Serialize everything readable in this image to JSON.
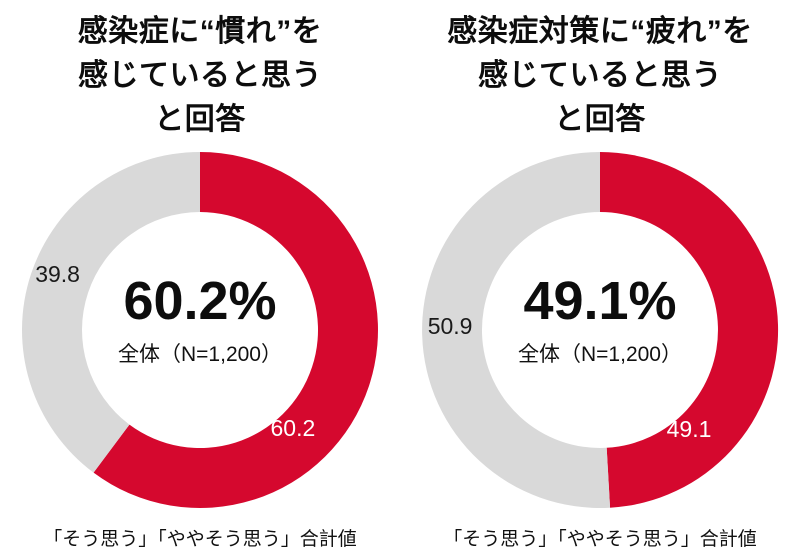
{
  "colors": {
    "accent_red": "#D5082E",
    "neutral_gray": "#D9D9D9",
    "text": "#111111",
    "background": "#FFFFFF"
  },
  "chart_data": [
    {
      "type": "pie",
      "donut": true,
      "title": "感染症に“慣れ”を感じていると思うと回答",
      "title_lines": [
        "感染症に“慣れ”を",
        "感じていると思う",
        "と回答"
      ],
      "center_value": "60.2%",
      "center_note": "全体（N=1,200）",
      "footnote": "「そう思う」「ややそう思う」合計値",
      "start_angle_deg": 0,
      "clockwise": true,
      "donut_outer_radius": 178,
      "donut_inner_radius": 118,
      "slices": [
        {
          "label": "60.2",
          "value": 60.2,
          "color": "#D5082E",
          "label_color": "#FFFFFF",
          "label_angle_deg": 136.5,
          "label_radius": 135
        },
        {
          "label": "39.8",
          "value": 39.8,
          "color": "#D9D9D9",
          "label_color": "#1A1A1A",
          "label_angle_deg": 291.5,
          "label_radius": 153
        }
      ]
    },
    {
      "type": "pie",
      "donut": true,
      "title": "感染症対策に“疲れ”を感じていると思うと回答",
      "title_lines": [
        "感染症対策に“疲れ”を",
        "感じていると思う",
        "と回答"
      ],
      "center_value": "49.1%",
      "center_note": "全体（N=1,200）",
      "footnote": "「そう思う」「ややそう思う」合計値",
      "start_angle_deg": 0,
      "clockwise": true,
      "donut_outer_radius": 178,
      "donut_inner_radius": 118,
      "slices": [
        {
          "label": "49.1",
          "value": 49.1,
          "color": "#D5082E",
          "label_color": "#FFFFFF",
          "label_angle_deg": 138.0,
          "label_radius": 133
        },
        {
          "label": "50.9",
          "value": 50.9,
          "color": "#D9D9D9",
          "label_color": "#1A1A1A",
          "label_angle_deg": 271.5,
          "label_radius": 150
        }
      ]
    }
  ]
}
